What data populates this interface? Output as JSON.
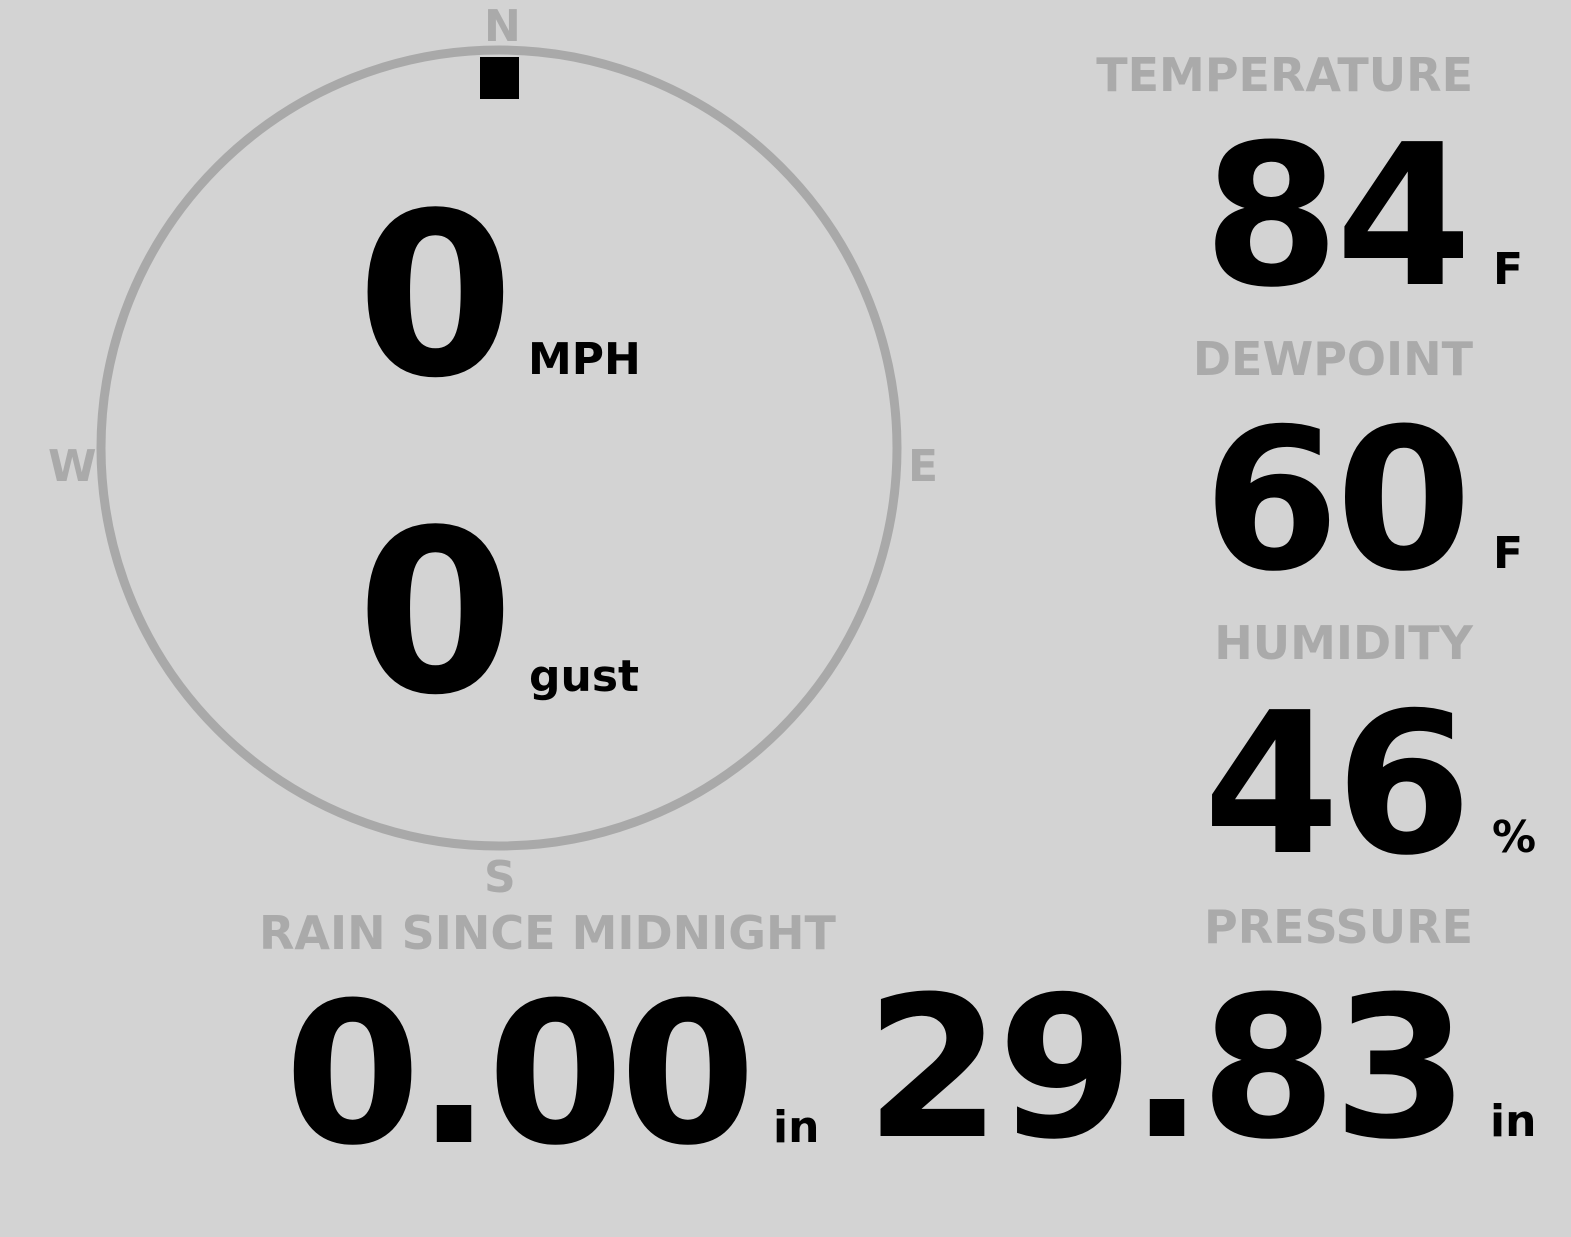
{
  "colors": {
    "background": "#d3d3d3",
    "label": "#aaaaaa",
    "value": "#000000",
    "dial": "#a9a9a9"
  },
  "wind": {
    "compass": {
      "north": "N",
      "south": "S",
      "east": "E",
      "west": "W"
    },
    "direction_degrees": 0,
    "speed": "0",
    "speed_unit": "MPH",
    "gust": "0",
    "gust_unit": "gust"
  },
  "temperature": {
    "label": "TEMPERATURE",
    "value": "84",
    "unit": "F"
  },
  "dewpoint": {
    "label": "DEWPOINT",
    "value": "60",
    "unit": "F"
  },
  "humidity": {
    "label": "HUMIDITY",
    "value": "46",
    "unit": "%"
  },
  "pressure": {
    "label": "PRESSURE",
    "value": "29.83",
    "unit": "in"
  },
  "rain": {
    "label": "RAIN SINCE MIDNIGHT",
    "value": "0.00",
    "unit": "in"
  }
}
